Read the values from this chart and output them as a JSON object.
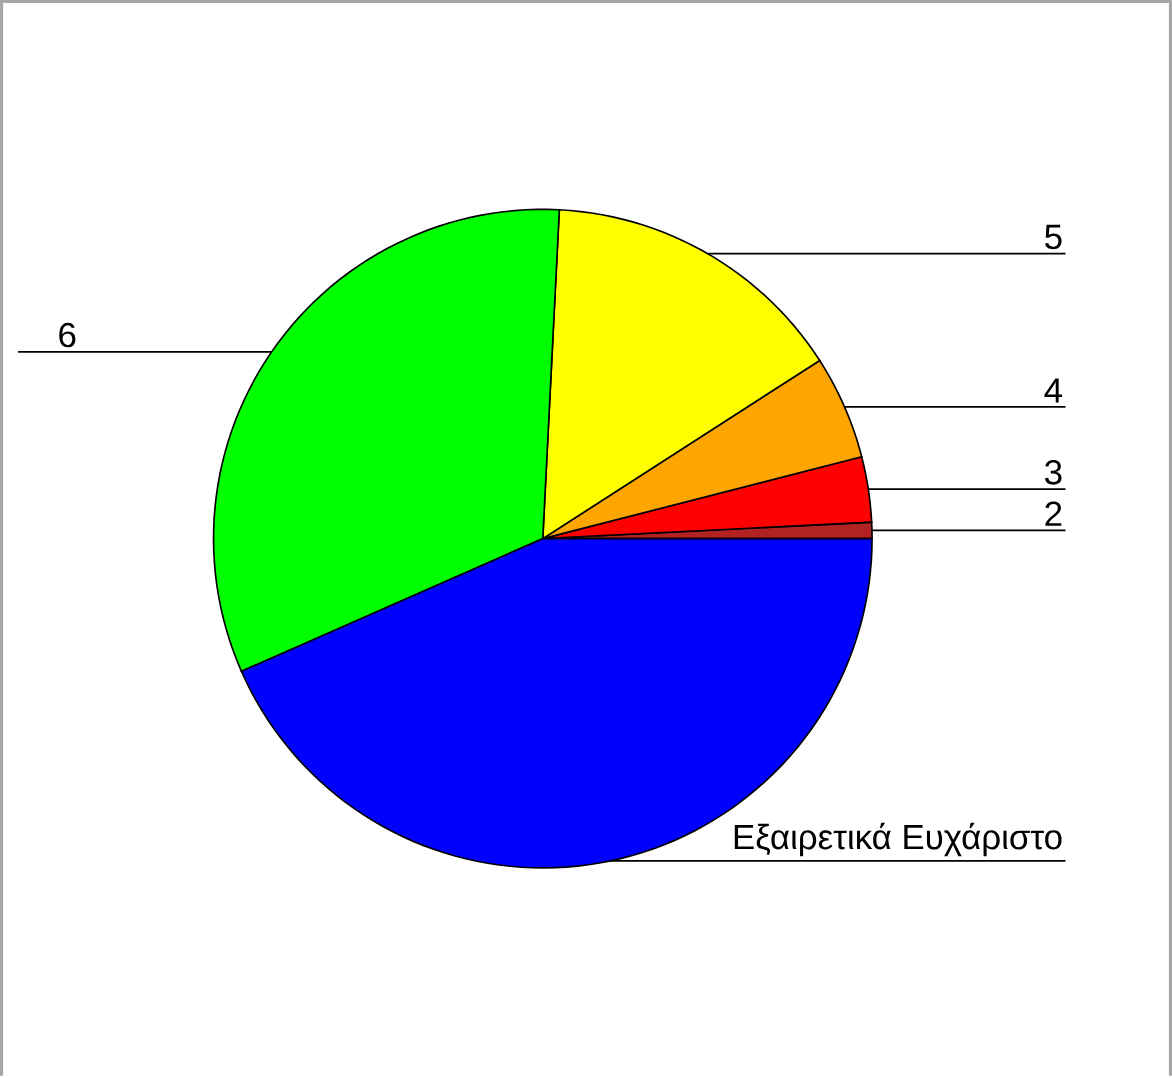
{
  "chart_data": {
    "type": "pie",
    "categories": [
      "2",
      "3",
      "4",
      "5",
      "6",
      "Εξαιρετικά Ευχάριστο"
    ],
    "values": [
      0.8,
      3.2,
      5.1,
      15.1,
      32.4,
      43.4
    ],
    "colors": [
      "#b22222",
      "#ff0000",
      "#ffa500",
      "#ffff00",
      "#00ff00",
      "#0000ff"
    ]
  }
}
